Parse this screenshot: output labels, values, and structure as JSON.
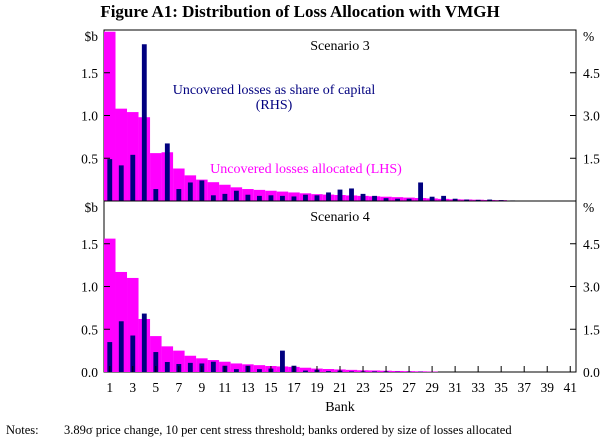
{
  "chart_data": {
    "type": "bar",
    "title": "Figure A1: Distribution of Loss Allocation with VMGH",
    "xlabel": "Bank",
    "x_ticks": [
      "1",
      "3",
      "5",
      "7",
      "9",
      "11",
      "13",
      "15",
      "17",
      "19",
      "21",
      "23",
      "25",
      "27",
      "29",
      "31",
      "33",
      "35",
      "37",
      "39",
      "41"
    ],
    "banks": 41,
    "panels": [
      {
        "name": "Scenario 3",
        "left_unit": "$b",
        "right_unit": "%",
        "left_ticks": [
          "0.5",
          "1.0",
          "1.5"
        ],
        "right_ticks": [
          "1.5",
          "3.0",
          "4.5"
        ],
        "ylim_left": [
          0,
          2
        ],
        "ylim_right": [
          0,
          6
        ],
        "series": [
          {
            "name": "Uncovered losses allocated (LHS)",
            "axis": "left",
            "color": "#ff00ff",
            "values": [
              1.98,
              1.08,
              1.04,
              0.98,
              0.56,
              0.57,
              0.38,
              0.3,
              0.25,
              0.22,
              0.19,
              0.16,
              0.14,
              0.13,
              0.12,
              0.11,
              0.1,
              0.09,
              0.08,
              0.075,
              0.07,
              0.065,
              0.06,
              0.055,
              0.05,
              0.045,
              0.04,
              0.035,
              0.03,
              0.025,
              0.02,
              0.018,
              0.015,
              0.012,
              0.01,
              0,
              0,
              0,
              0,
              0,
              0
            ]
          },
          {
            "name": "Uncovered losses as share of capital (RHS)",
            "axis": "right",
            "color": "#00007f",
            "values": [
              1.47,
              1.25,
              1.62,
              5.5,
              0.42,
              2.02,
              0.42,
              0.65,
              0.72,
              0.2,
              0.25,
              0.36,
              0.22,
              0.18,
              0.2,
              0.18,
              0.16,
              0.22,
              0.2,
              0.3,
              0.4,
              0.44,
              0.25,
              0.18,
              0.1,
              0.08,
              0.08,
              0.65,
              0.15,
              0.18,
              0.08,
              0.05,
              0.04,
              0.05,
              0.03,
              0.02,
              0,
              0,
              0,
              0,
              0
            ]
          }
        ],
        "annotations": [
          "Uncovered losses as share of capital",
          "(RHS)",
          "Uncovered losses allocated (LHS)"
        ]
      },
      {
        "name": "Scenario 4",
        "left_unit": "$b",
        "right_unit": "%",
        "left_ticks": [
          "0.0",
          "0.5",
          "1.0",
          "1.5"
        ],
        "right_ticks": [
          "0.0",
          "1.5",
          "3.0",
          "4.5"
        ],
        "ylim_left": [
          0,
          2
        ],
        "ylim_right": [
          0,
          6
        ],
        "series": [
          {
            "name": "Uncovered losses allocated",
            "axis": "left",
            "color": "#ff00ff",
            "values": [
              1.56,
              1.17,
              1.1,
              0.62,
              0.42,
              0.3,
              0.25,
              0.19,
              0.16,
              0.14,
              0.12,
              0.1,
              0.09,
              0.08,
              0.07,
              0.065,
              0.06,
              0.05,
              0.04,
              0.035,
              0.03,
              0.025,
              0.02,
              0.018,
              0.015,
              0.012,
              0.01,
              0.008,
              0.005,
              0,
              0,
              0,
              0,
              0,
              0,
              0,
              0,
              0,
              0,
              0,
              0
            ]
          },
          {
            "name": "Uncovered losses as share of capital",
            "axis": "right",
            "color": "#00007f",
            "values": [
              1.05,
              1.78,
              1.28,
              2.05,
              0.7,
              0.35,
              0.28,
              0.32,
              0.3,
              0.36,
              0.22,
              0.1,
              0.22,
              0.1,
              0.12,
              0.75,
              0.22,
              0.05,
              0.08,
              0.03,
              0.05,
              0.02,
              0.02,
              0.02,
              0.02,
              0.01,
              0.01,
              0.01,
              0,
              0,
              0,
              0,
              0,
              0,
              0,
              0,
              0,
              0,
              0,
              0,
              0
            ]
          }
        ],
        "annotations": []
      }
    ]
  },
  "notes": {
    "label": "Notes:",
    "text": "3.89σ price change, 10 per cent stress threshold; banks ordered by size of losses allocated"
  }
}
